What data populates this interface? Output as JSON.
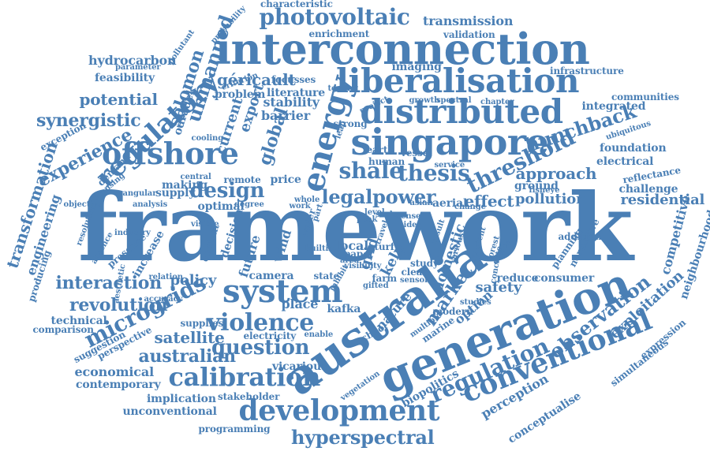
{
  "word_color": "#4a7fb5",
  "background_color": "#ffffff",
  "words": [
    "framework",
    "australia",
    "generation",
    "singapore",
    "energy",
    "interconnection",
    "distributed",
    "liberalisation",
    "development",
    "system",
    "offshore",
    "regulatory",
    "conventional",
    "calibration",
    "violence",
    "question",
    "photovoltaic",
    "microgrids",
    "hyperspectral",
    "regulation",
    "shale",
    "thesis",
    "threshold",
    "design",
    "legalpower",
    "interaction",
    "revolution",
    "experience",
    "synergistic",
    "potential",
    "hunchback",
    "unmanned",
    "salomon",
    "transformation",
    "australian",
    "satellite",
    "observation",
    "residential",
    "market",
    "approach",
    "pollution",
    "effect",
    "policy",
    "exploitation",
    "competitive",
    "neighbourhood",
    "engineering",
    "hydrocarbon",
    "transmission",
    "validation",
    "characteristic",
    "enrichment",
    "géricault",
    "literature",
    "stability",
    "barrier",
    "strong",
    "global",
    "export",
    "current",
    "foundation",
    "electrical",
    "integrated",
    "infrastructure",
    "communities",
    "challenge",
    "reflectance",
    "ubiquitous",
    "feasibility",
    "parameter",
    "economical",
    "contemporary",
    "implication",
    "stakeholder",
    "unconventional",
    "programming",
    "vicarious",
    "perception",
    "conceptualise",
    "simultaneous",
    "expression",
    "safety",
    "option",
    "domestic",
    "kelp",
    "grid",
    "nature",
    "kafka",
    "place",
    "camera",
    "state",
    "farm",
    "biopolitics",
    "vegetation",
    "supplies",
    "electricity",
    "suggestion",
    "perspective",
    "technical",
    "comparison",
    "accuracy",
    "relation",
    "aesthetic",
    "producing",
    "industry",
    "presence",
    "increase",
    "absence",
    "resolution",
    "objective",
    "analysis",
    "angular",
    "making",
    "supply",
    "optimal",
    "degree",
    "work",
    "future",
    "wind",
    "decision",
    "context",
    "visible",
    "central",
    "remote",
    "price",
    "cooling",
    "licensing",
    "demand",
    "exception",
    "odradek",
    "problem",
    "criterion",
    "focusses",
    "testing",
    "pollutant",
    "probability",
    "imaging",
    "project",
    "growth",
    "spectral",
    "chapter",
    "vessel",
    "earth",
    "human",
    "service",
    "ground",
    "fisheye",
    "level",
    "peak",
    "scale",
    "idea",
    "aerial",
    "change",
    "asian",
    "local",
    "paper",
    "area",
    "travel",
    "turf",
    "water",
    "part",
    "builtin",
    "reduce",
    "consumer",
    "study",
    "clean",
    "school",
    "marine",
    "modern",
    "studies",
    "gifted",
    "multiple",
    "enable",
    "planning",
    "normative",
    "addition",
    "device",
    "forest",
    "nutrient",
    "various",
    "concrete",
    "result",
    "sensor",
    "whole",
    "visibility",
    "inhibit",
    "leap",
    "sense",
    "style"
  ]
}
